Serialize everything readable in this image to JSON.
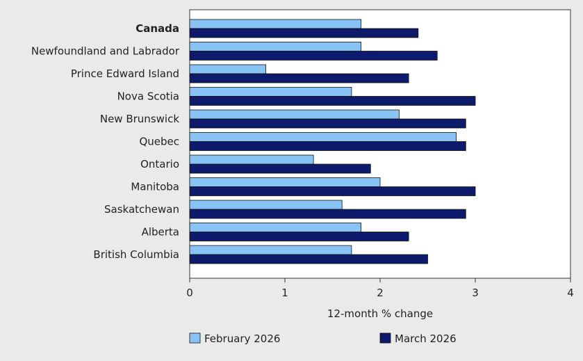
{
  "chart_data": {
    "type": "bar",
    "orientation": "horizontal",
    "categories": [
      "Canada",
      "Newfoundland and Labrador",
      "Prince Edward Island",
      "Nova Scotia",
      "New Brunswick",
      "Quebec",
      "Ontario",
      "Manitoba",
      "Saskatchewan",
      "Alberta",
      "British Columbia"
    ],
    "bold_categories": [
      "Canada"
    ],
    "series": [
      {
        "name": "February 2026",
        "color": "#87c3f5",
        "values": [
          1.8,
          1.8,
          0.8,
          1.7,
          2.2,
          2.8,
          1.3,
          2.0,
          1.6,
          1.8,
          1.7
        ]
      },
      {
        "name": "March 2026",
        "color": "#0e1a6b",
        "values": [
          2.4,
          2.6,
          2.3,
          3.0,
          2.9,
          2.9,
          1.9,
          3.0,
          2.9,
          2.3,
          2.5
        ]
      }
    ],
    "xlabel": "12-month % change",
    "xlim": [
      0,
      4
    ],
    "xticks": [
      "0",
      "1",
      "2",
      "3",
      "4"
    ],
    "grid": false,
    "legend_position": "bottom"
  }
}
